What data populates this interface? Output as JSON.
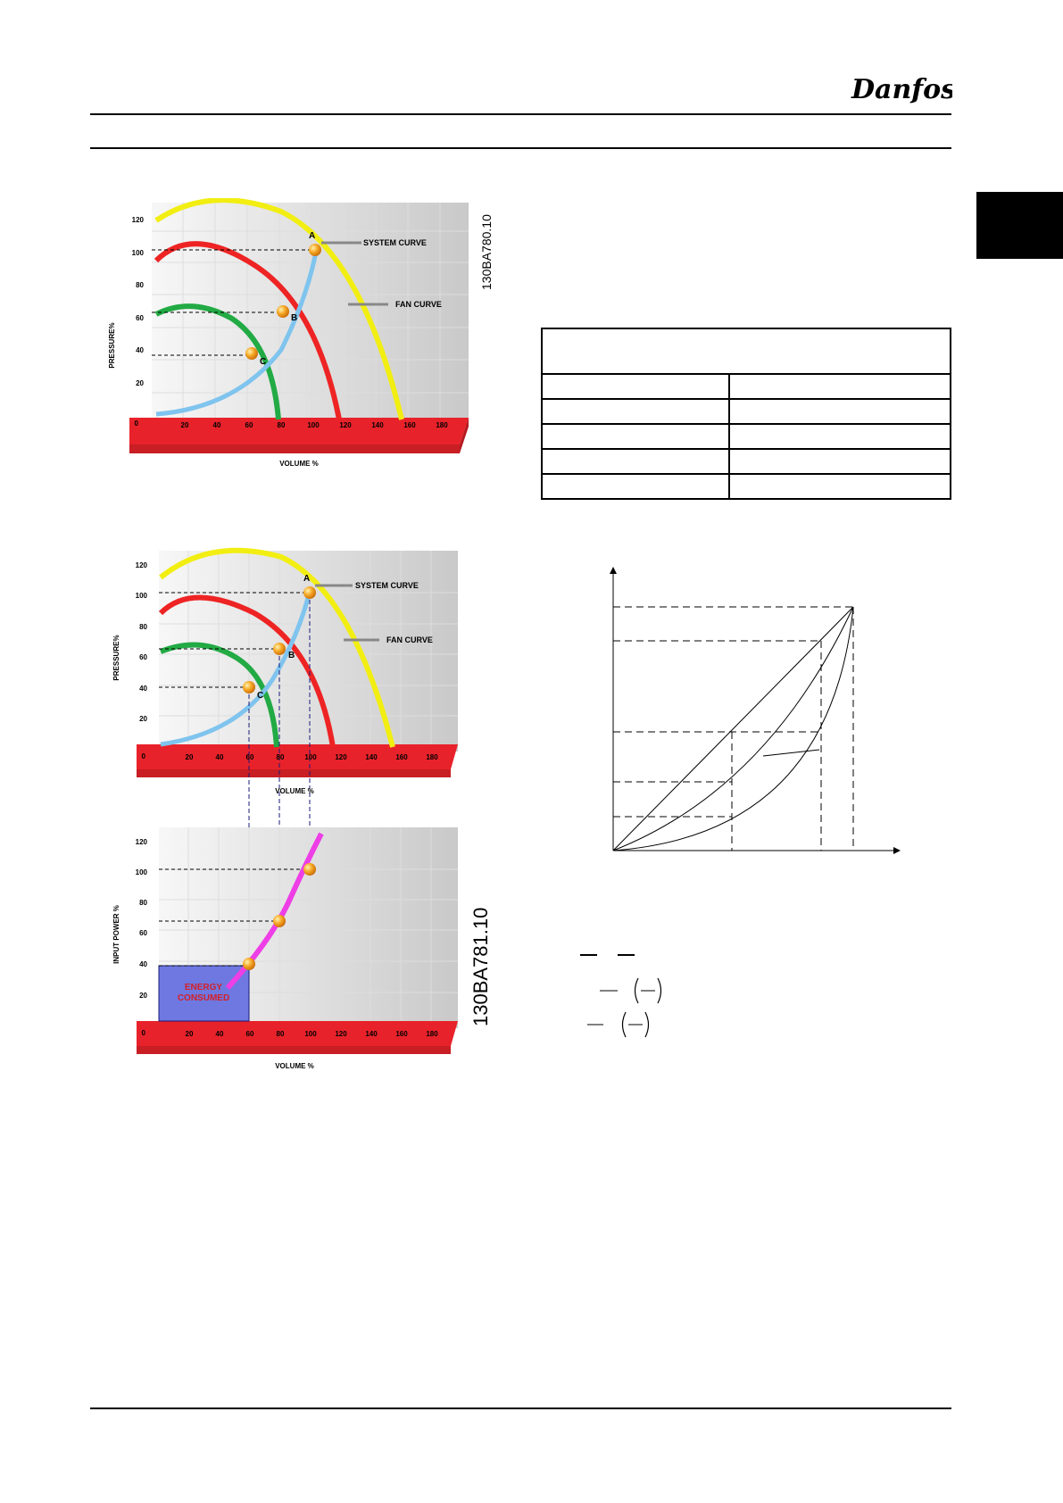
{
  "header": {
    "logo_text": "Danfoss"
  },
  "figure1": {
    "code": "130BA780.10",
    "y_axis_label": "PRESSURE%",
    "x_axis_label": "VOLUME %",
    "y_ticks": [
      "120",
      "100",
      "80",
      "60",
      "40",
      "20",
      "0"
    ],
    "x_ticks": [
      "20",
      "40",
      "60",
      "80",
      "100",
      "120",
      "140",
      "160",
      "180"
    ],
    "point_labels": [
      "A",
      "B",
      "C"
    ],
    "callouts": {
      "system_curve": "SYSTEM CURVE",
      "fan_curve": "FAN CURVE"
    }
  },
  "figure2": {
    "code": "130BA781.10",
    "top": {
      "y_axis_label": "PRESSURE%",
      "x_axis_label": "VOLUME %",
      "y_ticks": [
        "120",
        "100",
        "80",
        "60",
        "40",
        "20",
        "0"
      ],
      "x_ticks": [
        "20",
        "40",
        "60",
        "80",
        "100",
        "120",
        "140",
        "160",
        "180"
      ],
      "point_labels": [
        "A",
        "B",
        "C"
      ],
      "callouts": {
        "system_curve": "SYSTEM CURVE",
        "fan_curve": "FAN CURVE"
      }
    },
    "bottom": {
      "y_axis_label": "INPUT POWER %",
      "x_axis_label": "VOLUME %",
      "y_ticks": [
        "120",
        "100",
        "80",
        "60",
        "40",
        "20",
        "0"
      ],
      "x_ticks": [
        "20",
        "40",
        "60",
        "80",
        "100",
        "120",
        "140",
        "160",
        "180"
      ],
      "energy_label_line1": "ENERGY",
      "energy_label_line2": "CONSUMED"
    }
  },
  "colors": {
    "yellow_curve": "#f2ee12",
    "red_curve": "#ee2424",
    "green_curve": "#22aa44",
    "blue_curve": "#7fc4ee",
    "magenta_curve": "#ee3ee6",
    "base_red": "#e8222a",
    "energy_fill": "#6e78e0"
  }
}
